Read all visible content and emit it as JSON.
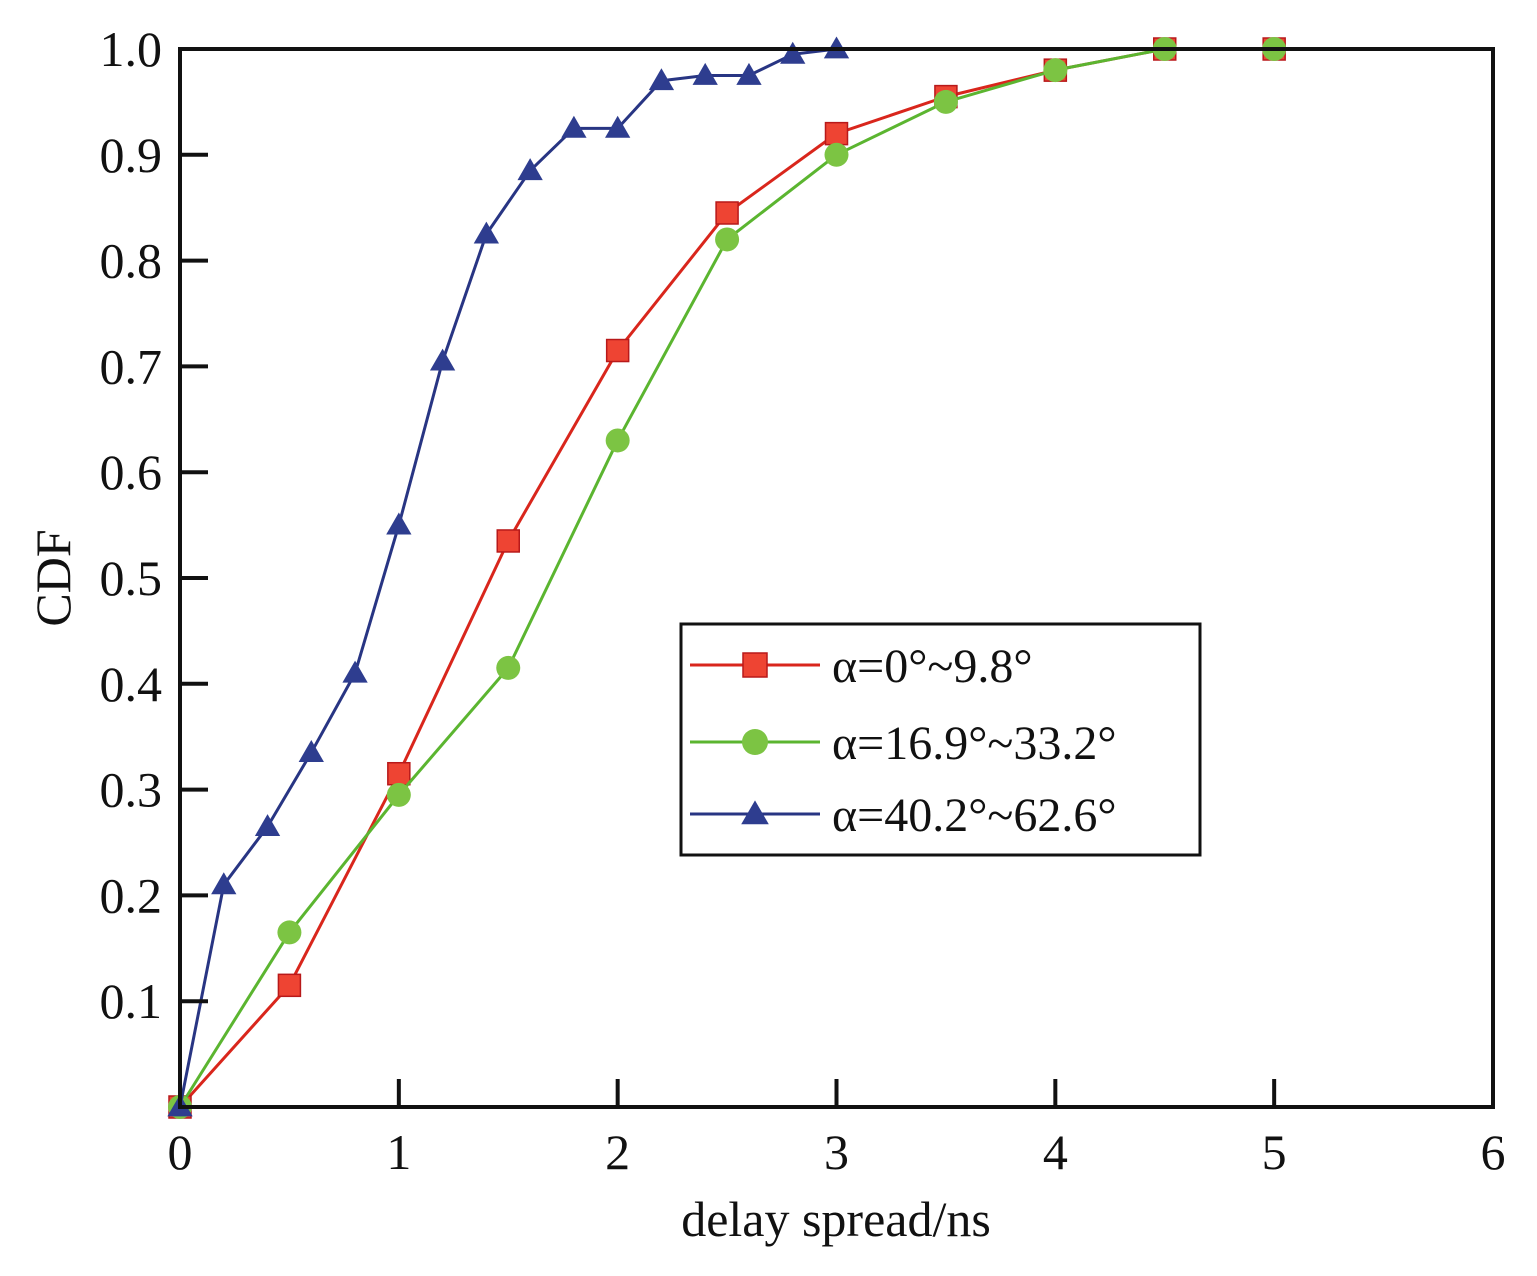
{
  "chart_data": {
    "type": "line",
    "title": "",
    "xlabel": "delay spread/ns",
    "ylabel": "CDF",
    "xlim": [
      0,
      6
    ],
    "ylim": [
      0,
      1.0
    ],
    "x_ticks": [
      0,
      1,
      2,
      3,
      4,
      5,
      6
    ],
    "x_tick_labels": [
      "0",
      "1",
      "2",
      "3",
      "4",
      "5",
      "6"
    ],
    "y_ticks": [
      0.1,
      0.2,
      0.3,
      0.4,
      0.5,
      0.6,
      0.7,
      0.8,
      0.9,
      1.0
    ],
    "y_tick_labels": [
      "0.1",
      "0.2",
      "0.3",
      "0.4",
      "0.5",
      "0.6",
      "0.7",
      "0.8",
      "0.9",
      "1.0"
    ],
    "grid": false,
    "legend_position": "center-right",
    "series": [
      {
        "name": "α=0°~9.8°",
        "marker": "square",
        "color": "#d9261c",
        "marker_color": "#ee4433",
        "x": [
          0,
          0.5,
          1,
          1.5,
          2,
          2.5,
          3,
          3.5,
          4,
          4.5,
          5
        ],
        "y": [
          0,
          0.115,
          0.315,
          0.535,
          0.715,
          0.845,
          0.92,
          0.955,
          0.98,
          1.0,
          1.0
        ]
      },
      {
        "name": "α=16.9°~33.2°",
        "marker": "circle",
        "color": "#5bb530",
        "marker_color": "#7cc443",
        "x": [
          0,
          0.5,
          1,
          1.5,
          2,
          2.5,
          3,
          3.5,
          4,
          4.5,
          5
        ],
        "y": [
          0,
          0.165,
          0.295,
          0.415,
          0.63,
          0.82,
          0.9,
          0.95,
          0.98,
          1.0,
          1.0
        ]
      },
      {
        "name": "α=40.2°~62.6°",
        "marker": "triangle",
        "color": "#283583",
        "marker_color": "#2e3d8f",
        "x": [
          0,
          0.2,
          0.4,
          0.6,
          0.8,
          1.0,
          1.2,
          1.4,
          1.6,
          1.8,
          2.0,
          2.2,
          2.4,
          2.6,
          2.8,
          3.0
        ],
        "y": [
          0,
          0.21,
          0.265,
          0.335,
          0.41,
          0.55,
          0.705,
          0.825,
          0.885,
          0.925,
          0.925,
          0.97,
          0.975,
          0.975,
          0.995,
          1.0
        ]
      }
    ]
  }
}
